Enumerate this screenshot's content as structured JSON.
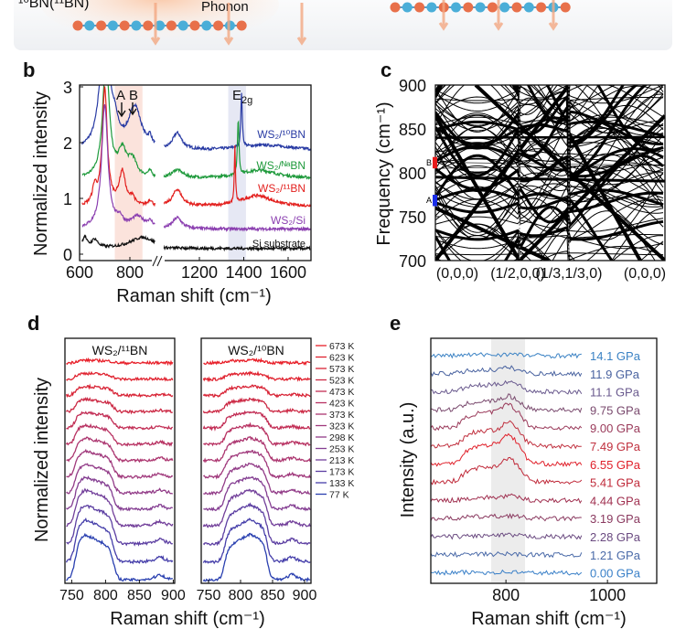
{
  "top_illustration": {
    "left_label": "¹⁰BN(¹¹BN)",
    "center_label": "Phonon",
    "atom_colors": {
      "boron": "#e8704a",
      "nitrogen": "#4aaed8"
    }
  },
  "panels": {
    "b": {
      "label": "b"
    },
    "c": {
      "label": "c"
    },
    "d": {
      "label": "d"
    },
    "e": {
      "label": "e"
    }
  },
  "chart_data": [
    {
      "panel": "b",
      "type": "line",
      "xlabel": "Raman shift (cm⁻¹)",
      "ylabel": "Normalized intensity",
      "xlim": [
        600,
        1700
      ],
      "x_break": [
        900,
        1040
      ],
      "ylim": [
        0,
        3
      ],
      "xticks": [
        "600",
        "800",
        "1200",
        "1400",
        "1600"
      ],
      "yticks": [
        "0",
        "1",
        "2",
        "3"
      ],
      "annotations": {
        "A": "A",
        "B": "B",
        "E2g_main": "E",
        "E2g_sub": "2g"
      },
      "shaded_regions": [
        {
          "range": [
            740,
            850
          ],
          "color": "#fbe3dc"
        },
        {
          "range": [
            1330,
            1410
          ],
          "color": "#e6e8f4"
        }
      ],
      "series": [
        {
          "name": "WS₂/¹⁰BN",
          "color": "#2a3ca4",
          "baseline": 1.85,
          "peaks": [
            [
              700,
              2.5,
              20
            ],
            [
              740,
              0.3,
              15
            ],
            [
              820,
              0.75,
              30
            ],
            [
              880,
              0.15,
              8
            ],
            [
              1100,
              0.3,
              25
            ],
            [
              1390,
              0.95,
              4
            ],
            [
              1500,
              0.1,
              150
            ]
          ]
        },
        {
          "name": "WS₂/ᴺᵃBN",
          "color": "#1f9a3c",
          "baseline": 1.35,
          "peaks": [
            [
              705,
              2.2,
              15
            ],
            [
              770,
              0.45,
              20
            ],
            [
              810,
              0.3,
              20
            ],
            [
              880,
              0.1,
              10
            ],
            [
              1100,
              0.15,
              30
            ],
            [
              1375,
              1.0,
              4
            ],
            [
              1470,
              0.15,
              100
            ]
          ]
        },
        {
          "name": "WS₂/¹¹BN",
          "color": "#e3211f",
          "baseline": 0.85,
          "peaks": [
            [
              700,
              2.1,
              12
            ],
            [
              660,
              0.3,
              10
            ],
            [
              770,
              0.6,
              15
            ],
            [
              810,
              0.15,
              10
            ],
            [
              880,
              0.1,
              10
            ],
            [
              1100,
              0.3,
              25
            ],
            [
              1360,
              1.0,
              3
            ],
            [
              1460,
              0.2,
              80
            ]
          ]
        },
        {
          "name": "WS₂/Si",
          "color": "#8b3fb0",
          "baseline": 0.45,
          "peaks": [
            [
              700,
              2.2,
              15
            ],
            [
              760,
              0.15,
              15
            ],
            [
              830,
              0.2,
              30
            ],
            [
              880,
              0.1,
              15
            ],
            [
              1100,
              0.2,
              25
            ]
          ]
        },
        {
          "name": "Si substrate",
          "color": "#111111",
          "baseline": 0.1,
          "peaks": [
            [
              620,
              0.2,
              10
            ],
            [
              660,
              0.15,
              15
            ],
            [
              850,
              0.2,
              60
            ]
          ]
        }
      ]
    },
    {
      "panel": "c",
      "type": "line",
      "ylabel": "Frequency (cm⁻¹)",
      "ylim": [
        700,
        900
      ],
      "yticks": [
        "700",
        "750",
        "800",
        "850",
        "900"
      ],
      "xticks": [
        "(0,0,0)",
        "(1/2,0,0)",
        "(1/3,1/3,0)",
        "(0,0,0)"
      ],
      "marked_modes": [
        {
          "name": "A",
          "range": [
            762,
            775
          ],
          "color": "#1a2ee8"
        },
        {
          "name": "B",
          "range": [
            805,
            818
          ],
          "color": "#e81a1a"
        }
      ]
    },
    {
      "panel": "d",
      "type": "line",
      "xlabel": "Raman shift (cm⁻¹)",
      "ylabel": "Normalized intensity",
      "subplots": [
        {
          "title": "WS₂/¹¹BN",
          "xlim": [
            740,
            900
          ],
          "xticks": [
            "750",
            "800",
            "850",
            "900"
          ],
          "band": [
            755,
            812
          ],
          "peak": 770
        },
        {
          "title": "WS₂/¹⁰BN",
          "xlim": [
            740,
            910
          ],
          "xticks": [
            "750",
            "800",
            "850",
            "900"
          ],
          "band": [
            775,
            842
          ],
          "peak": 815
        }
      ],
      "series": [
        {
          "name": "673 K",
          "color": "#e8202a"
        },
        {
          "name": "623 K",
          "color": "#e0222f"
        },
        {
          "name": "573 K",
          "color": "#d82436"
        },
        {
          "name": "523 K",
          "color": "#cc2a45"
        },
        {
          "name": "473 K",
          "color": "#c22e55"
        },
        {
          "name": "423 K",
          "color": "#b83262"
        },
        {
          "name": "373 K",
          "color": "#ac3670"
        },
        {
          "name": "323 K",
          "color": "#a0397c"
        },
        {
          "name": "298 K",
          "color": "#923c88"
        },
        {
          "name": "253 K",
          "color": "#843e92"
        },
        {
          "name": "213 K",
          "color": "#723f9a"
        },
        {
          "name": "173 K",
          "color": "#5c3fa2"
        },
        {
          "name": "133 K",
          "color": "#463faa"
        },
        {
          "name": "77 K",
          "color": "#2a40b0"
        }
      ]
    },
    {
      "panel": "e",
      "type": "line",
      "xlabel": "Raman shift (cm⁻¹)",
      "ylabel": "Intensity (a.u.)",
      "xlim": [
        652,
        1097
      ],
      "xticks": [
        "800",
        "1000"
      ],
      "shaded_region": {
        "range": [
          771,
          838
        ],
        "color": "#ececec"
      },
      "series": [
        {
          "name": "14.1 GPa",
          "color": "#3b82c4",
          "relative_peak": 0.05
        },
        {
          "name": "11.9 GPa",
          "color": "#4a63a0",
          "relative_peak": 0.2
        },
        {
          "name": "11.1 GPa",
          "color": "#6a5a8e",
          "relative_peak": 0.35
        },
        {
          "name": "9.75 GPa",
          "color": "#7a4a6e",
          "relative_peak": 0.45
        },
        {
          "name": "9.00 GPa",
          "color": "#9a3a5a",
          "relative_peak": 0.8
        },
        {
          "name": "7.49 GPa",
          "color": "#c0303e",
          "relative_peak": 0.8
        },
        {
          "name": "6.55 GPa",
          "color": "#e0202a",
          "relative_peak": 1.0
        },
        {
          "name": "5.41 GPa",
          "color": "#c02a3a",
          "relative_peak": 0.8
        },
        {
          "name": "4.44 GPa",
          "color": "#a03050",
          "relative_peak": 0.15
        },
        {
          "name": "3.19 GPa",
          "color": "#8a3a60",
          "relative_peak": 0.1
        },
        {
          "name": "2.28 GPa",
          "color": "#6a4a80",
          "relative_peak": 0.05
        },
        {
          "name": "1.21 GPa",
          "color": "#4a6aa8",
          "relative_peak": 0.03
        },
        {
          "name": "0.00 GPa",
          "color": "#3a80c8",
          "relative_peak": 0.03
        }
      ]
    }
  ]
}
